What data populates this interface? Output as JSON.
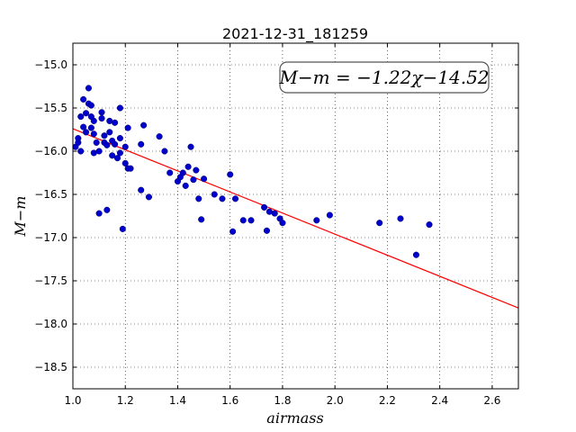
{
  "chart_data": {
    "type": "scatter",
    "title": "2021-12-31_181259",
    "xlabel": "airmass",
    "ylabel": "M−m",
    "xlim": [
      1.0,
      2.7
    ],
    "ylim": [
      -18.75,
      -14.75
    ],
    "x_ticks": [
      "1.0",
      "1.2",
      "1.4",
      "1.6",
      "1.8",
      "2.0",
      "2.2",
      "2.4",
      "2.6"
    ],
    "x_tick_values": [
      1.0,
      1.2,
      1.4,
      1.6,
      1.8,
      2.0,
      2.2,
      2.4,
      2.6
    ],
    "y_ticks": [
      "−15.0",
      "−15.5",
      "−16.0",
      "−16.5",
      "−17.0",
      "−17.5",
      "−18.0",
      "−18.5"
    ],
    "y_tick_values": [
      -15.0,
      -15.5,
      -16.0,
      -16.5,
      -17.0,
      -17.5,
      -18.0,
      -18.5
    ],
    "grid": true,
    "annotation": "M−m = −1.22χ−14.52",
    "fit": {
      "slope": -1.22,
      "intercept": -14.52,
      "color": "#ff0000"
    },
    "point_color": "#0000cc",
    "points": [
      [
        1.01,
        -15.95
      ],
      [
        1.02,
        -15.9
      ],
      [
        1.02,
        -15.85
      ],
      [
        1.03,
        -16.0
      ],
      [
        1.03,
        -15.6
      ],
      [
        1.04,
        -15.4
      ],
      [
        1.04,
        -15.72
      ],
      [
        1.05,
        -15.56
      ],
      [
        1.05,
        -15.78
      ],
      [
        1.06,
        -15.27
      ],
      [
        1.06,
        -15.45
      ],
      [
        1.07,
        -15.47
      ],
      [
        1.07,
        -15.6
      ],
      [
        1.07,
        -15.73
      ],
      [
        1.08,
        -16.02
      ],
      [
        1.08,
        -15.8
      ],
      [
        1.08,
        -15.65
      ],
      [
        1.09,
        -15.9
      ],
      [
        1.1,
        -16.0
      ],
      [
        1.1,
        -16.72
      ],
      [
        1.11,
        -15.55
      ],
      [
        1.11,
        -15.62
      ],
      [
        1.12,
        -15.82
      ],
      [
        1.12,
        -15.9
      ],
      [
        1.13,
        -15.93
      ],
      [
        1.13,
        -16.68
      ],
      [
        1.14,
        -15.78
      ],
      [
        1.14,
        -15.65
      ],
      [
        1.15,
        -15.88
      ],
      [
        1.15,
        -16.05
      ],
      [
        1.16,
        -15.67
      ],
      [
        1.16,
        -15.92
      ],
      [
        1.17,
        -16.08
      ],
      [
        1.18,
        -15.85
      ],
      [
        1.18,
        -16.02
      ],
      [
        1.18,
        -15.5
      ],
      [
        1.19,
        -16.9
      ],
      [
        1.2,
        -15.95
      ],
      [
        1.2,
        -16.14
      ],
      [
        1.21,
        -16.2
      ],
      [
        1.21,
        -15.73
      ],
      [
        1.22,
        -16.2
      ],
      [
        1.26,
        -15.92
      ],
      [
        1.26,
        -16.45
      ],
      [
        1.27,
        -15.7
      ],
      [
        1.29,
        -16.53
      ],
      [
        1.33,
        -15.83
      ],
      [
        1.35,
        -16.0
      ],
      [
        1.37,
        -16.25
      ],
      [
        1.4,
        -16.35
      ],
      [
        1.41,
        -16.3
      ],
      [
        1.42,
        -16.25
      ],
      [
        1.43,
        -16.4
      ],
      [
        1.44,
        -16.18
      ],
      [
        1.45,
        -15.95
      ],
      [
        1.46,
        -16.33
      ],
      [
        1.47,
        -16.22
      ],
      [
        1.48,
        -16.55
      ],
      [
        1.49,
        -16.79
      ],
      [
        1.5,
        -16.32
      ],
      [
        1.54,
        -16.5
      ],
      [
        1.57,
        -16.55
      ],
      [
        1.6,
        -16.27
      ],
      [
        1.61,
        -16.93
      ],
      [
        1.62,
        -16.55
      ],
      [
        1.65,
        -16.8
      ],
      [
        1.68,
        -16.8
      ],
      [
        1.73,
        -16.65
      ],
      [
        1.74,
        -16.92
      ],
      [
        1.75,
        -16.7
      ],
      [
        1.77,
        -16.72
      ],
      [
        1.79,
        -16.78
      ],
      [
        1.8,
        -16.83
      ],
      [
        1.93,
        -16.8
      ],
      [
        1.98,
        -16.74
      ],
      [
        2.17,
        -16.83
      ],
      [
        2.25,
        -16.78
      ],
      [
        2.31,
        -17.2
      ],
      [
        2.36,
        -16.85
      ]
    ]
  }
}
